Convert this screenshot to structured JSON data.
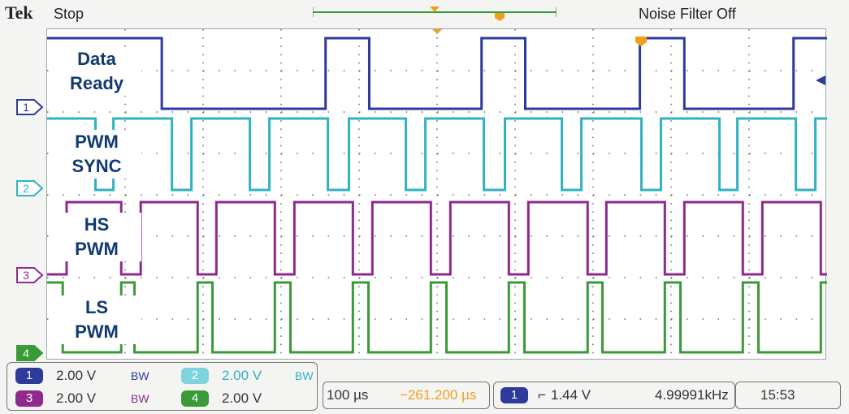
{
  "header": {
    "brand": "Tek",
    "acq_state": "Stop",
    "noise_filter": "Noise Filter Off"
  },
  "labels": {
    "ch1": [
      "Data",
      "Ready"
    ],
    "ch2": [
      "PWM",
      "SYNC"
    ],
    "ch3": [
      "HS",
      "PWM"
    ],
    "ch4": [
      "LS",
      "PWM"
    ]
  },
  "markers": [
    "1",
    "2",
    "3",
    "4"
  ],
  "colors": {
    "ch1": "#2e3a9c",
    "ch2": "#2fb3c0",
    "ch3": "#8e2a8c",
    "ch4": "#3a9a38",
    "trigger": "#f0a020",
    "label_text": "#123a70"
  },
  "channels": [
    {
      "num": "1",
      "scale": "2.00 V",
      "bw": "BW",
      "color": "#2e3a9c"
    },
    {
      "num": "2",
      "scale": "2.00 V",
      "bw": "BW",
      "color": "#7fd3dd"
    },
    {
      "num": "3",
      "scale": "2.00 V",
      "bw": "BW",
      "color": "#8e2a8c"
    },
    {
      "num": "4",
      "scale": "2.00 V",
      "color": "#3a9a38"
    }
  ],
  "timebase": {
    "scale": "100 µs",
    "position": "−261.200 µs"
  },
  "trigger": {
    "source": "1",
    "edge": "rising",
    "edge_glyph": "⌐",
    "level": "1.44 V",
    "frequency": "4.99991kHz",
    "time": "15:53"
  },
  "waveform_data": {
    "time_divisions": 10,
    "ch1": {
      "high_intervals": [
        [
          0.0,
          1.47
        ],
        [
          3.57,
          4.13
        ],
        [
          5.57,
          6.13
        ],
        [
          7.6,
          8.17
        ],
        [
          9.57,
          10.0
        ]
      ]
    },
    "ch2": {
      "low_pulses": [
        [
          0.62,
          0.85
        ],
        [
          1.6,
          1.85
        ],
        [
          2.6,
          2.85
        ],
        [
          3.6,
          3.87
        ],
        [
          4.6,
          4.85
        ],
        [
          5.6,
          5.87
        ],
        [
          6.6,
          6.85
        ],
        [
          7.62,
          7.87
        ],
        [
          8.62,
          8.85
        ],
        [
          9.6,
          9.85
        ]
      ]
    },
    "ch3": {
      "high_intervals": [
        [
          0.25,
          0.95
        ],
        [
          1.2,
          1.93
        ],
        [
          2.17,
          2.92
        ],
        [
          3.17,
          3.92
        ],
        [
          4.17,
          4.92
        ],
        [
          5.17,
          5.92
        ],
        [
          6.17,
          6.93
        ],
        [
          7.17,
          7.92
        ],
        [
          8.17,
          8.92
        ],
        [
          9.17,
          9.92
        ]
      ]
    },
    "ch4": {
      "high_intervals": [
        [
          0.0,
          0.2
        ],
        [
          0.95,
          1.12
        ],
        [
          1.93,
          2.12
        ],
        [
          2.92,
          3.12
        ],
        [
          3.92,
          4.12
        ],
        [
          4.92,
          5.12
        ],
        [
          5.92,
          6.12
        ],
        [
          6.93,
          7.12
        ],
        [
          7.92,
          8.12
        ],
        [
          8.92,
          9.12
        ],
        [
          9.92,
          10.0
        ]
      ]
    }
  }
}
